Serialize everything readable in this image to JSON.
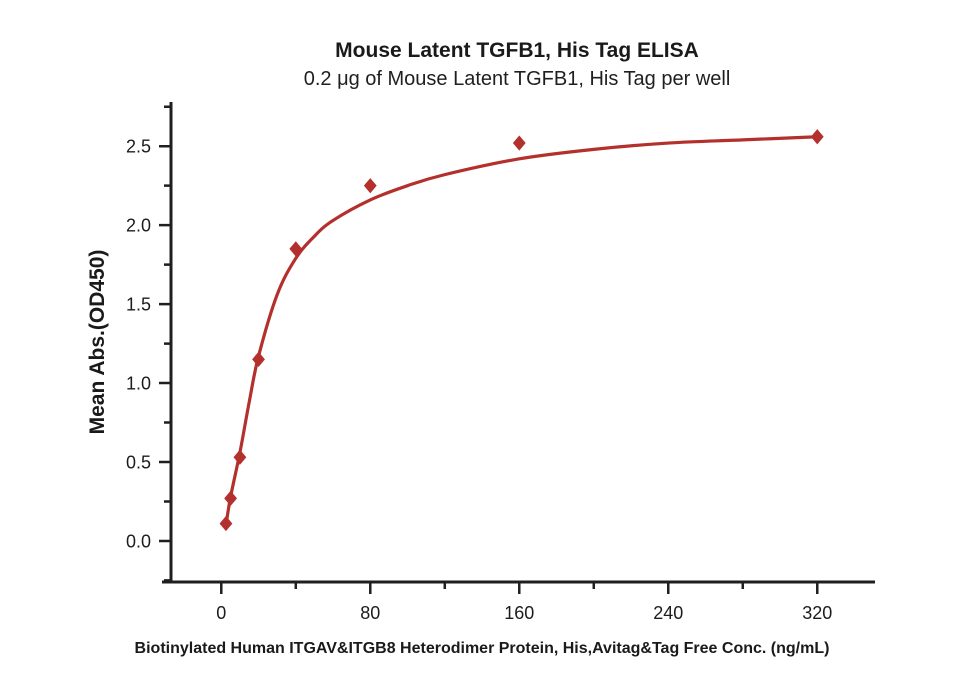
{
  "page": {
    "background": "#ffffff"
  },
  "chart_data": {
    "type": "scatter",
    "title": "Mouse Latent TGFB1, His Tag ELISA",
    "subtitle": "0.2 μg of Mouse Latent TGFB1, His Tag per well",
    "xlabel": "Biotinylated Human ITGAV&ITGB8 Heterodimer Protein, His,Avitag&Tag Free Conc. (ng/mL)",
    "ylabel": "Mean Abs.(OD450)",
    "x": [
      2.5,
      5,
      10,
      20,
      40,
      80,
      160,
      320
    ],
    "y": [
      0.11,
      0.27,
      0.53,
      1.15,
      1.85,
      2.25,
      2.52,
      2.56
    ],
    "fit_curve": [
      [
        2.5,
        0.1
      ],
      [
        5,
        0.28
      ],
      [
        10,
        0.56
      ],
      [
        15,
        0.88
      ],
      [
        20,
        1.17
      ],
      [
        30,
        1.56
      ],
      [
        40,
        1.79
      ],
      [
        50,
        1.93
      ],
      [
        60,
        2.03
      ],
      [
        80,
        2.16
      ],
      [
        100,
        2.25
      ],
      [
        120,
        2.32
      ],
      [
        160,
        2.42
      ],
      [
        200,
        2.48
      ],
      [
        240,
        2.52
      ],
      [
        280,
        2.54
      ],
      [
        320,
        2.56
      ]
    ],
    "xlim": [
      -27,
      351
    ],
    "ylim": [
      -0.26,
      2.78
    ],
    "x_major_ticks": [
      0,
      80,
      160,
      240,
      320
    ],
    "x_minor_ticks": [
      40,
      120,
      200,
      280
    ],
    "y_major_ticks": [
      0.0,
      0.5,
      1.0,
      1.5,
      2.0,
      2.5
    ],
    "y_minor_ticks": [
      -0.25,
      0.25,
      0.75,
      1.25,
      1.75,
      2.25,
      2.75
    ],
    "marker": "diamond",
    "series_color": "#b3302c",
    "axis_color": "#1f1f1f",
    "grid": false,
    "legend": "none",
    "y_tick_decimals": 1
  }
}
